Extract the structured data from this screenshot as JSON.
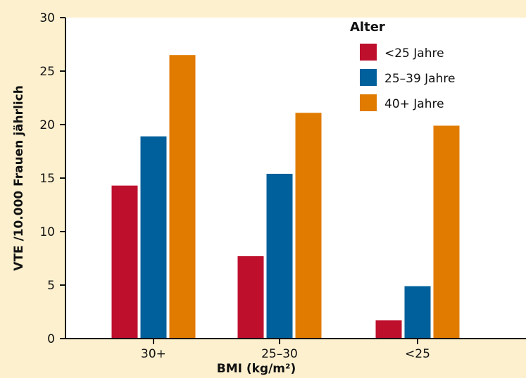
{
  "chart_data": {
    "type": "bar",
    "categories": [
      "30+",
      "25–30",
      "<25"
    ],
    "series": [
      {
        "name": "<25 Jahre",
        "values": [
          14.3,
          7.7,
          1.7
        ],
        "color": "#be0f2d"
      },
      {
        "name": "25–39 Jahre",
        "values": [
          18.9,
          15.4,
          4.9
        ],
        "color": "#00609b"
      },
      {
        "name": "40+ Jahre",
        "values": [
          26.5,
          21.1,
          19.9
        ],
        "color": "#e07b00"
      }
    ],
    "ylim": [
      0,
      30
    ],
    "yticks": [
      0,
      5,
      10,
      15,
      20,
      25,
      30
    ],
    "xlabel": "BMI (kg/m²)",
    "ylabel": "VTE /10.000 Frauen jährlich",
    "legend_title": "Alter",
    "legend_position": "top-right",
    "grid": false,
    "background_color": "#fdf0cf"
  }
}
